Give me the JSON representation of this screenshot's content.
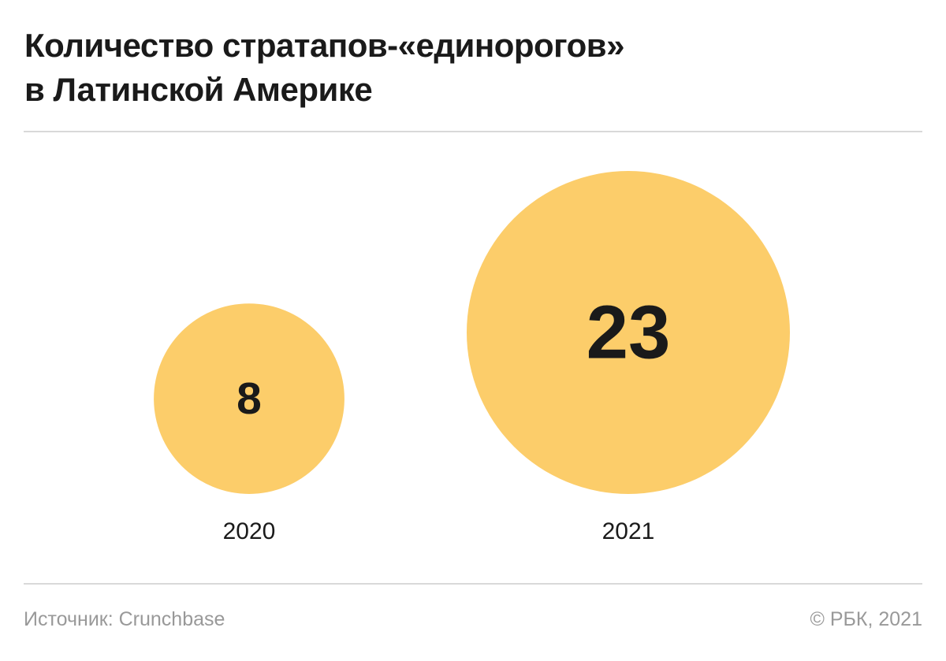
{
  "title_lines": [
    "Количество стратапов-«единорогов»",
    "в Латинской Америке"
  ],
  "source": "Источник: Crunchbase",
  "copyright": "© РБК, 2021",
  "colors": {
    "bubble": "#fccd6a",
    "value_text": "#1a1a1a",
    "label_text": "#1a1a1a",
    "rule": "#d9d9d9"
  },
  "chart_data": {
    "type": "bubble",
    "title": "Количество стратапов-«единорогов» в Латинской Америке",
    "categories": [
      "2020",
      "2021"
    ],
    "values": [
      8,
      23
    ]
  }
}
